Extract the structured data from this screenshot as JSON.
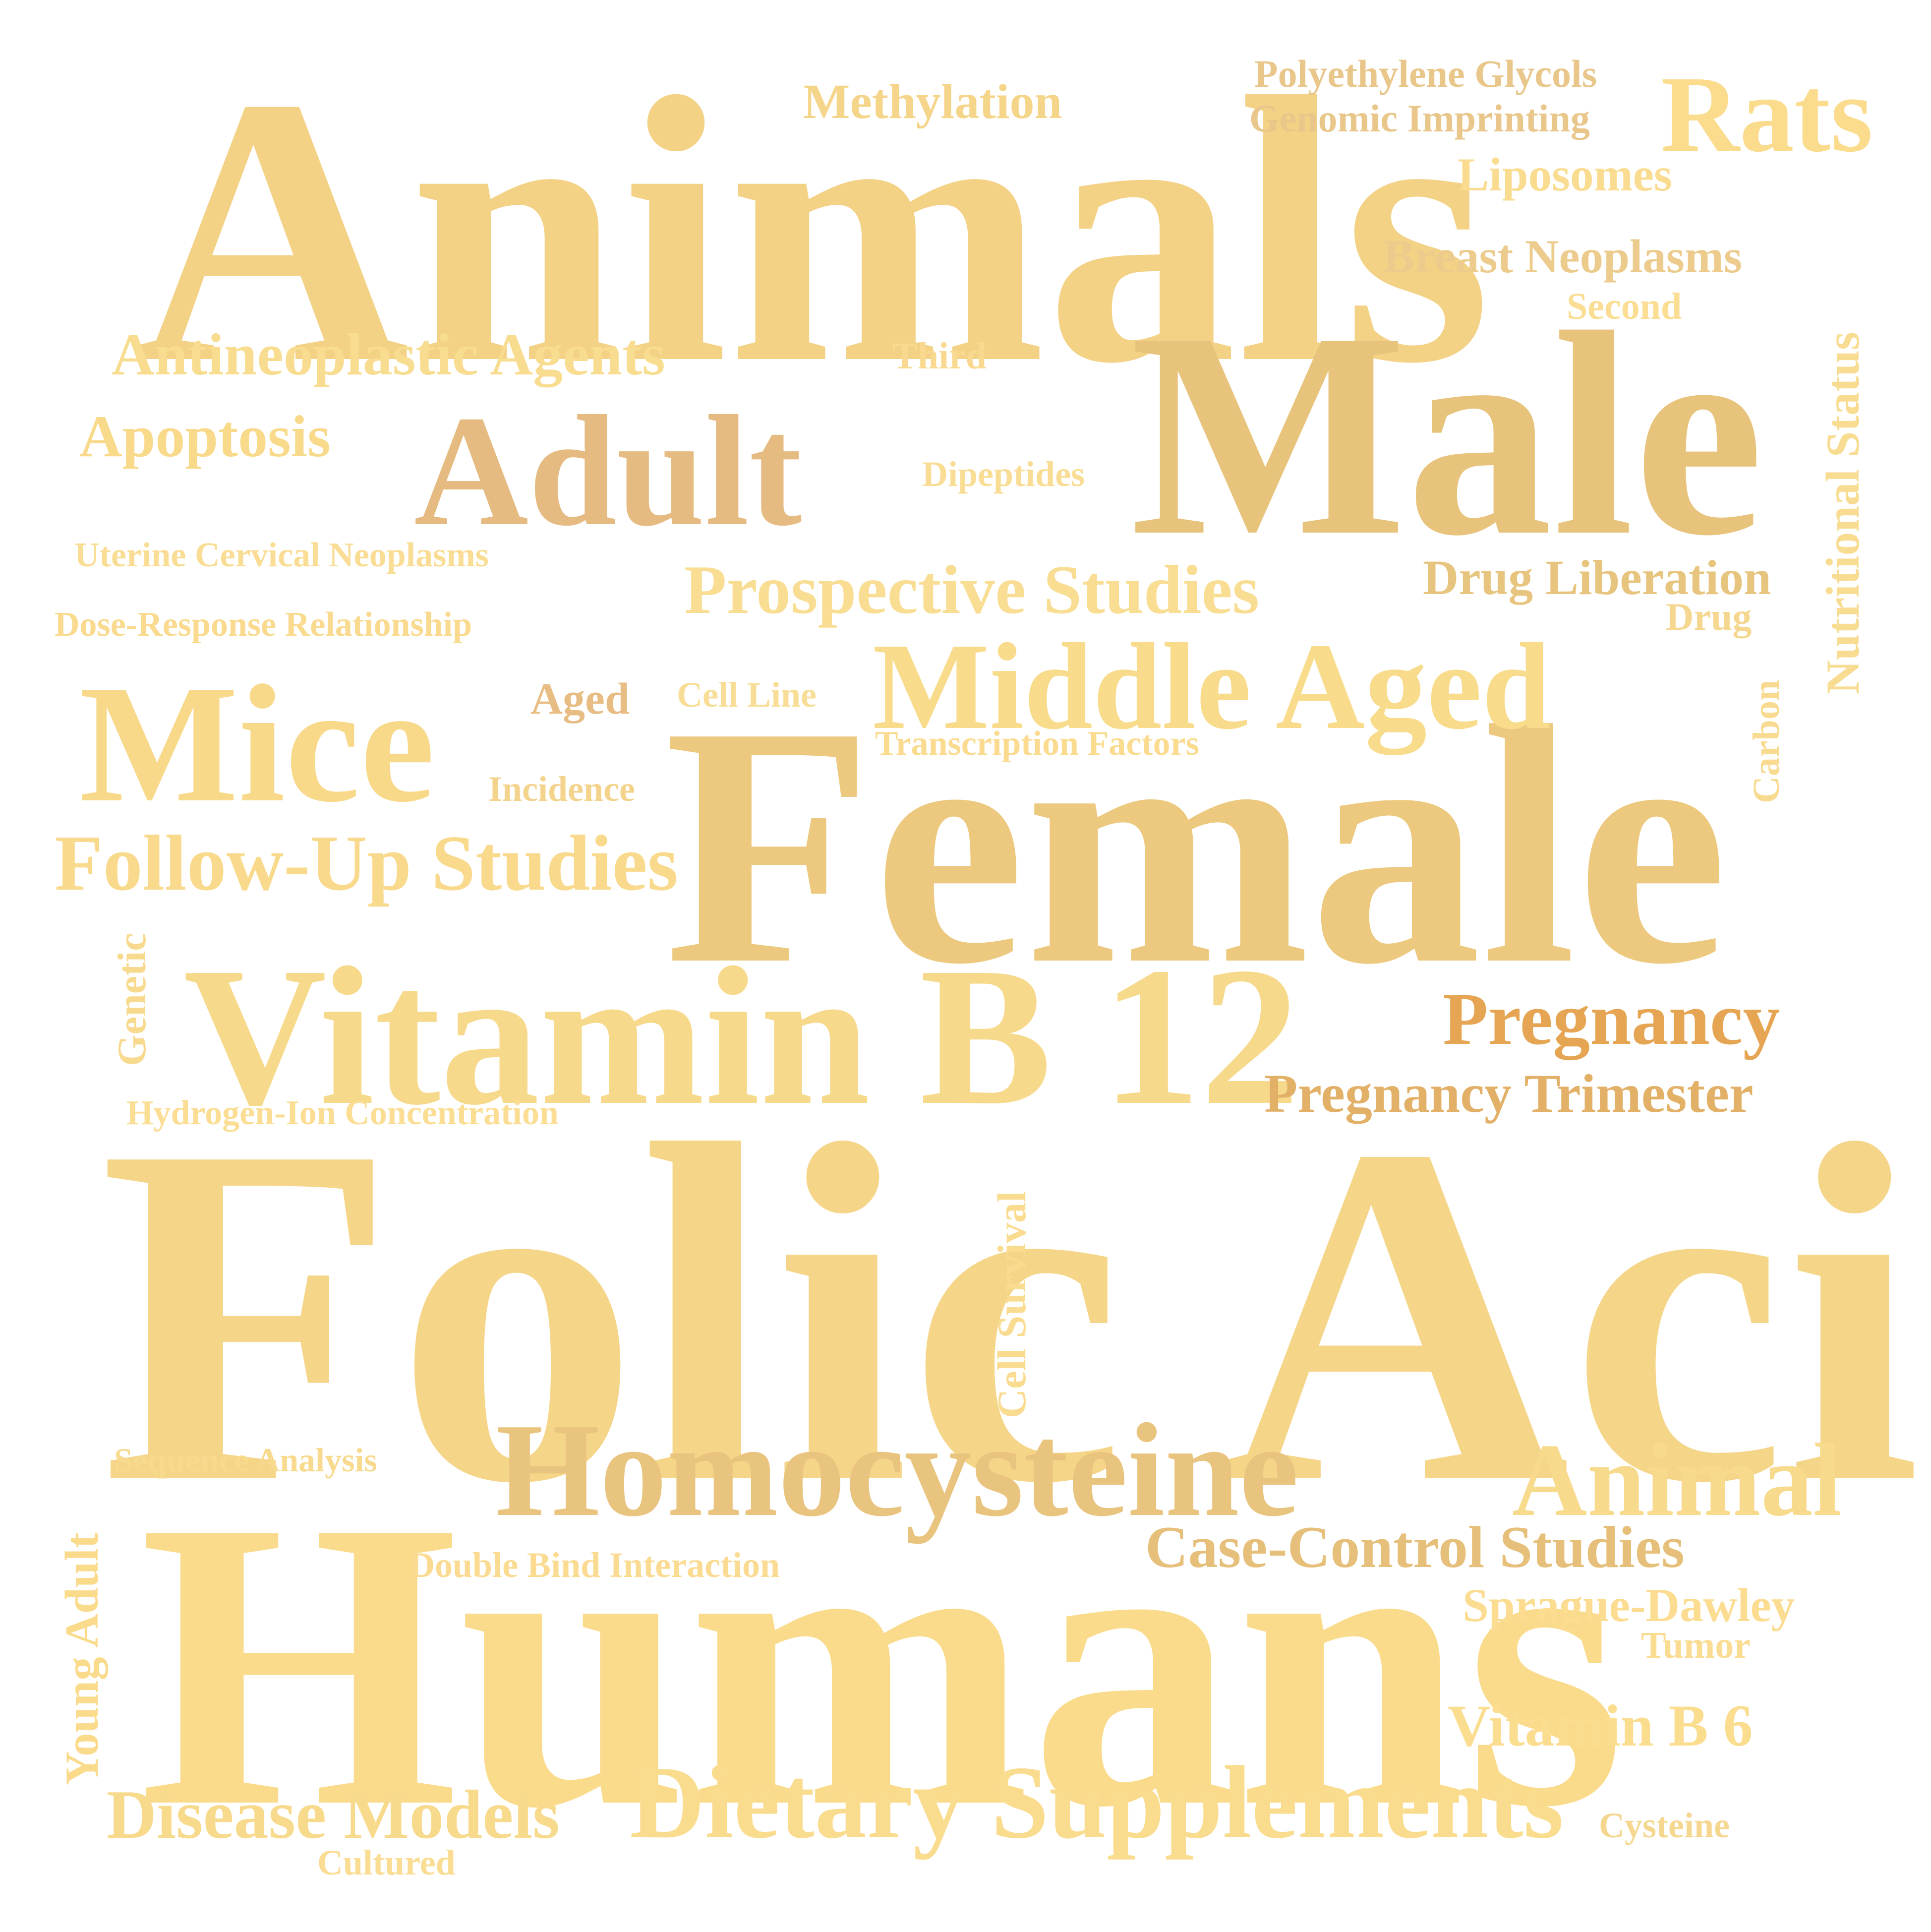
{
  "words": [
    {
      "key": "folic_acid",
      "text": "Folic Acid",
      "color": "#f5d588"
    },
    {
      "key": "humans",
      "text": "Humans",
      "color": "#fadb8b"
    },
    {
      "key": "animals",
      "text": "Animals",
      "color": "#f3d185"
    },
    {
      "key": "female",
      "text": "Female",
      "color": "#ecc97e"
    },
    {
      "key": "male",
      "text": "Male",
      "color": "#e8c37c"
    },
    {
      "key": "vitamin_b12",
      "text": "Vitamin B 12",
      "color": "#f7d98b"
    },
    {
      "key": "mice",
      "text": "Mice",
      "color": "#f8d98a"
    },
    {
      "key": "homocysteine",
      "text": "Homocysteine",
      "color": "#e9c47f"
    },
    {
      "key": "adult",
      "text": "Adult",
      "color": "#e6bb82"
    },
    {
      "key": "middle_aged",
      "text": "Middle Aged",
      "color": "#f8db8b"
    },
    {
      "key": "dietary_supplements",
      "text": "Dietary Supplements",
      "color": "#fadc8e"
    },
    {
      "key": "rats",
      "text": "Rats",
      "color": "#fbdb8c"
    },
    {
      "key": "animal",
      "text": "Animal",
      "color": "#f8da8c"
    },
    {
      "key": "follow_up_studies",
      "text": "Follow-Up Studies",
      "color": "#f9da8c"
    },
    {
      "key": "prospective_studies",
      "text": "Prospective Studies",
      "color": "#f8dd92"
    },
    {
      "key": "pregnancy",
      "text": "Pregnancy",
      "color": "#e6a553"
    },
    {
      "key": "disease_models",
      "text": "Disease Models",
      "color": "#f8da8c"
    },
    {
      "key": "case_control_studies",
      "text": "Case-Control Studies",
      "color": "#e6c07a"
    },
    {
      "key": "pregnancy_trimester",
      "text": "Pregnancy Trimester",
      "color": "#e2b067"
    },
    {
      "key": "antineoplastic_agents",
      "text": "Antineoplastic Agents",
      "color": "#f8dc8f"
    },
    {
      "key": "vitamin_b6",
      "text": "Vitamin B 6",
      "color": "#fbdd8f"
    },
    {
      "key": "apoptosis",
      "text": "Apoptosis",
      "color": "#f9da8b"
    },
    {
      "key": "methylation",
      "text": "Methylation",
      "color": "#f5d58a"
    },
    {
      "key": "breast_neoplasms",
      "text": "Breast Neoplasms",
      "color": "#eccb8d"
    },
    {
      "key": "drug_liberation",
      "text": "Drug Liberation",
      "color": "#e8c57f"
    },
    {
      "key": "liposomes",
      "text": "Liposomes",
      "color": "#fadc90"
    },
    {
      "key": "sprague_dawley",
      "text": "Sprague-Dawley",
      "color": "#fbdc90"
    },
    {
      "key": "nutritional_status",
      "text": "Nutritional Status",
      "color": "#f8dc91"
    },
    {
      "key": "young_adult",
      "text": "Young Adult",
      "color": "#fada8b"
    },
    {
      "key": "polyethylene_glycols",
      "text": "Polyethylene Glycols",
      "color": "#e9c68a"
    },
    {
      "key": "genomic_imprinting",
      "text": "Genomic Imprinting",
      "color": "#e9c68a"
    },
    {
      "key": "uterine_cervical_neoplasms",
      "text": "Uterine Cervical Neoplasms",
      "color": "#fadd94"
    },
    {
      "key": "dose_response_relationship",
      "text": "Dose-Response Relationship",
      "color": "#f9da8e"
    },
    {
      "key": "double_bind_interaction",
      "text": "Double Bind Interaction",
      "color": "#fadb91"
    },
    {
      "key": "hydrogen_ion_concentration",
      "text": "Hydrogen-Ion Concentration",
      "color": "#fbdd94"
    },
    {
      "key": "transcription_factors",
      "text": "Transcription Factors",
      "color": "#fadb8f"
    },
    {
      "key": "sequence_analysis",
      "text": "Sequence Analysis",
      "color": "#f8da8e"
    },
    {
      "key": "cell_survival",
      "text": "Cell Survival",
      "color": "#fadc91"
    },
    {
      "key": "genetic",
      "text": "Genetic",
      "color": "#f8da8e"
    },
    {
      "key": "aged",
      "text": "Aged",
      "color": "#e8bd83"
    },
    {
      "key": "cell_line",
      "text": "Cell Line",
      "color": "#f8dd96"
    },
    {
      "key": "incidence",
      "text": "Incidence",
      "color": "#f4d38d"
    },
    {
      "key": "dipeptides",
      "text": "Dipeptides",
      "color": "#fadd95"
    },
    {
      "key": "third",
      "text": "Third",
      "color": "#f9d990"
    },
    {
      "key": "second",
      "text": "Second",
      "color": "#fbdd93"
    },
    {
      "key": "drug",
      "text": "Drug",
      "color": "#f5d790"
    },
    {
      "key": "carbon",
      "text": "Carbon",
      "color": "#f8da90"
    },
    {
      "key": "tumor",
      "text": "Tumor",
      "color": "#fadc92"
    },
    {
      "key": "cysteine",
      "text": "Cysteine",
      "color": "#f5d790"
    },
    {
      "key": "cultured",
      "text": "Cultured",
      "color": "#fadc92"
    }
  ]
}
